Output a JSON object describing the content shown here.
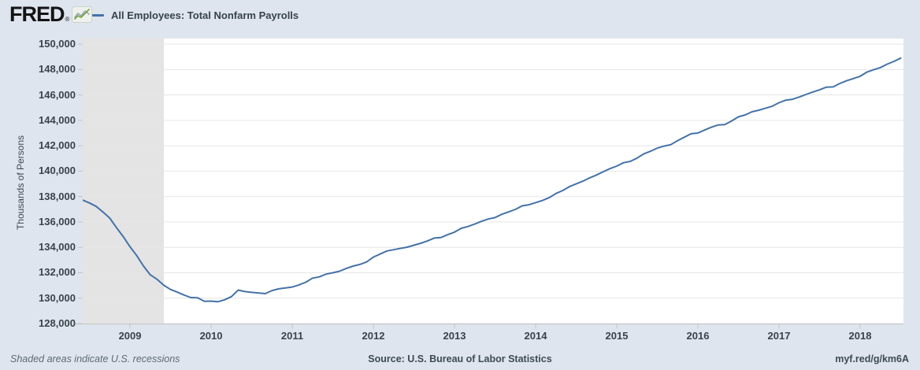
{
  "header": {
    "logo_text": "FRED",
    "logo_reg": "®",
    "series_label": "All Employees: Total Nonfarm Payrolls"
  },
  "footer": {
    "note": "Shaded areas indicate U.S. recessions",
    "source": "Source: U.S. Bureau of Labor Statistics",
    "permalink": "myf.red/g/km6A"
  },
  "colors": {
    "page_background": "#dfe5ee",
    "plot_background": "#ffffff",
    "line": "#4572a7",
    "recession_band": "#e4e4e4",
    "gridline": "#e6e6e6",
    "axis": "#c4c4c4",
    "tick_text": "#39424a",
    "icon_green": "#74a33e",
    "icon_gray": "#93a5b1"
  },
  "chart_data": {
    "type": "line",
    "title": "All Employees: Total Nonfarm Payrolls",
    "ylabel": "Thousands of Persons",
    "xlabel": "",
    "frequency": "Monthly",
    "start": "2008-06",
    "end": "2018-07",
    "ylim": [
      128000,
      150440
    ],
    "xlim_decimal": [
      2008.417,
      2018.534
    ],
    "y_ticks": [
      128000,
      130000,
      132000,
      134000,
      136000,
      138000,
      140000,
      142000,
      144000,
      146000,
      148000,
      150000
    ],
    "x_ticks": [
      2009,
      2010,
      2011,
      2012,
      2013,
      2014,
      2015,
      2016,
      2017,
      2018
    ],
    "grid": true,
    "legend_position": "top-left",
    "recession_bands": [
      {
        "start_decimal": 2008.417,
        "end_decimal": 2009.417
      }
    ],
    "series": [
      {
        "name": "All Employees: Total Nonfarm Payrolls",
        "color": "#4572a7",
        "start_decimal": 2008.4167,
        "points_per_year": 12,
        "values": [
          137717,
          137495,
          137226,
          136783,
          136308,
          135549,
          134844,
          134053,
          133350,
          132524,
          131837,
          131483,
          131010,
          130682,
          130471,
          130244,
          130043,
          130031,
          129746,
          129764,
          129714,
          129870,
          130121,
          130637,
          130515,
          130454,
          130412,
          130355,
          130596,
          130733,
          130804,
          130874,
          131042,
          131254,
          131576,
          131678,
          131895,
          132001,
          132123,
          132344,
          132527,
          132657,
          132856,
          133231,
          133473,
          133716,
          133812,
          133922,
          134010,
          134170,
          134320,
          134505,
          134730,
          134776,
          135000,
          135200,
          135500,
          135641,
          135834,
          136053,
          136234,
          136344,
          136603,
          136790,
          136990,
          137269,
          137354,
          137520,
          137688,
          137913,
          138243,
          138479,
          138780,
          138997,
          139215,
          139476,
          139699,
          139960,
          140197,
          140398,
          140664,
          140768,
          141030,
          141364,
          141569,
          141820,
          141971,
          142089,
          142409,
          142674,
          142945,
          143001,
          143238,
          143457,
          143640,
          143662,
          143953,
          144278,
          144425,
          144674,
          144798,
          144963,
          145118,
          145390,
          145590,
          145663,
          145838,
          146040,
          146233,
          146406,
          146614,
          146632,
          146906,
          147117,
          147293,
          147469,
          147799,
          147983,
          148158,
          148428,
          148641,
          148901
        ]
      }
    ]
  }
}
